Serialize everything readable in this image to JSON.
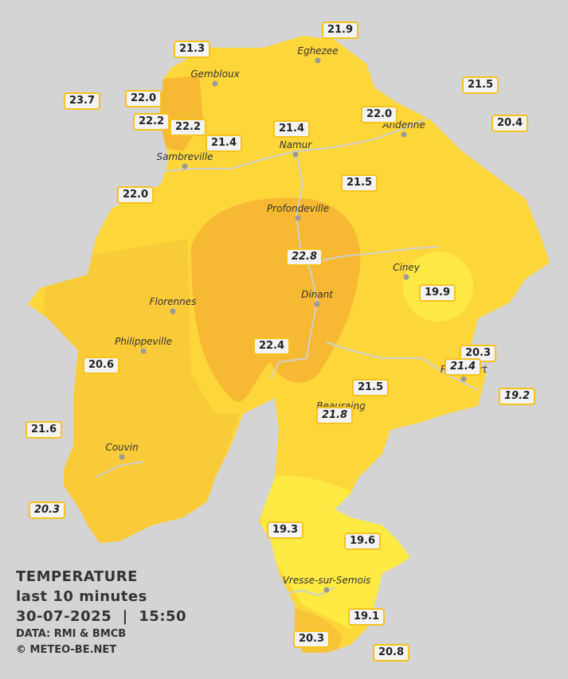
{
  "stations": [
    {
      "value": "21.3"
    },
    {
      "value": "21.9"
    },
    {
      "value": "23.7"
    },
    {
      "value": "22.0"
    },
    {
      "value": "22.2"
    },
    {
      "value": "22.2"
    },
    {
      "value": "21.4"
    },
    {
      "value": "21.4"
    },
    {
      "value": "22.0"
    },
    {
      "value": "21.5"
    },
    {
      "value": "20.4"
    },
    {
      "value": "22.0"
    },
    {
      "value": "21.5"
    },
    {
      "value": "22.8"
    },
    {
      "value": "19.9"
    },
    {
      "value": "22.4"
    },
    {
      "value": "20.6"
    },
    {
      "value": "20.3"
    },
    {
      "value": "21.4"
    },
    {
      "value": "19.2"
    },
    {
      "value": "21.5"
    },
    {
      "value": "21.8"
    },
    {
      "value": "21.6"
    },
    {
      "value": "20.3"
    },
    {
      "value": "19.3"
    },
    {
      "value": "19.6"
    },
    {
      "value": "19.1"
    },
    {
      "value": "20.3"
    },
    {
      "value": "20.8"
    }
  ],
  "cities": [
    {
      "name": "Eghezee"
    },
    {
      "name": "Gembloux"
    },
    {
      "name": "Andenne"
    },
    {
      "name": "Namur"
    },
    {
      "name": "Sambreville"
    },
    {
      "name": "Profondeville"
    },
    {
      "name": "Ciney"
    },
    {
      "name": "Dinant"
    },
    {
      "name": "Florennes"
    },
    {
      "name": "Philippeville"
    },
    {
      "name": "Rochefort"
    },
    {
      "name": "Beauraing"
    },
    {
      "name": "Couvin"
    },
    {
      "name": "Vresse-sur-Semois"
    }
  ],
  "legend": {
    "title": "TEMPERATURE",
    "period": "last 10 minutes",
    "datetime": "30-07-2025  |  15:50",
    "source": "DATA: RMI & BMCB",
    "credit": "© METEO-BE.NET"
  }
}
